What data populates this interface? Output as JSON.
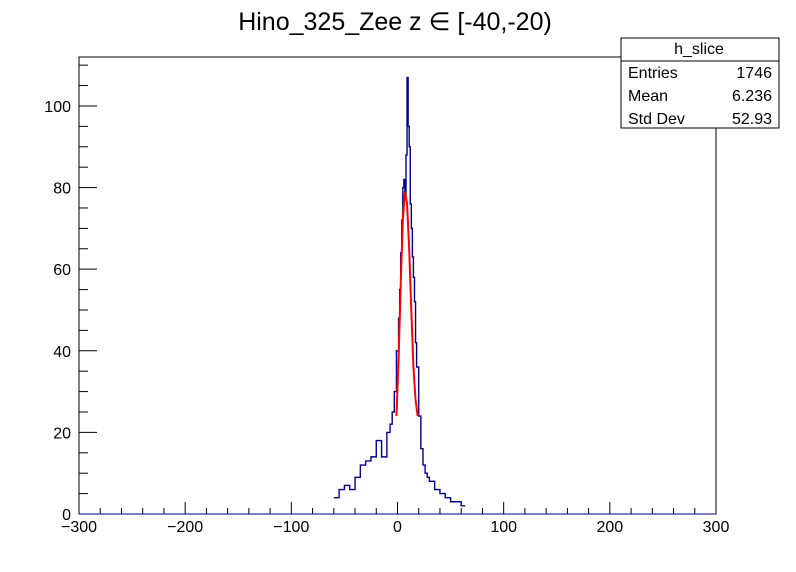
{
  "chart_data": {
    "type": "histogram",
    "title": "Hino_325_Zee z  ∈ [-40,-20)",
    "xlabel": "",
    "ylabel": "",
    "xlim": [
      -300,
      300
    ],
    "ylim": [
      0,
      112
    ],
    "x_ticks": [
      -300,
      -200,
      -100,
      0,
      100,
      200,
      300
    ],
    "y_ticks": [
      0,
      20,
      40,
      60,
      80,
      100
    ],
    "x_tick_labels": [
      "−300",
      "−200",
      "−100",
      "0",
      "100",
      "200",
      "300"
    ],
    "y_tick_labels": [
      "0",
      "20",
      "40",
      "60",
      "80",
      "100"
    ],
    "grid": false,
    "legend": "none",
    "histogram_color": "#00008b",
    "fit_color": "#ff0000",
    "histogram": {
      "x": [
        -60,
        -55,
        -50,
        -45,
        -40,
        -35,
        -30,
        -25,
        -20,
        -15,
        -10,
        -7,
        -5,
        -3,
        -1,
        1,
        2,
        3,
        4,
        5,
        6,
        7,
        8,
        9,
        10,
        11,
        12,
        13,
        14,
        15,
        16,
        17,
        18,
        20,
        22,
        24,
        26,
        28,
        30,
        35,
        40,
        45,
        50,
        60
      ],
      "y": [
        4,
        6,
        7,
        6,
        9,
        12,
        13,
        14,
        18,
        14,
        20,
        22,
        25,
        30,
        40,
        48,
        55,
        64,
        72,
        80,
        82,
        78,
        88,
        107,
        95,
        90,
        76,
        70,
        63,
        58,
        52,
        42,
        36,
        24,
        16,
        12,
        10,
        9,
        8,
        6,
        5,
        4,
        3,
        2
      ]
    },
    "fit": {
      "type": "gaussian",
      "x": [
        -1,
        1,
        3,
        5,
        7,
        9,
        11,
        13,
        15,
        17,
        19
      ],
      "y": [
        24,
        38,
        56,
        72,
        79,
        76,
        65,
        50,
        36,
        28,
        24
      ]
    }
  },
  "stats_box": {
    "title": "h_slice",
    "rows": [
      {
        "label": "Entries",
        "value": "1746"
      },
      {
        "label": "Mean",
        "value": "6.236"
      },
      {
        "label": "Std Dev",
        "value": "52.93"
      }
    ]
  }
}
